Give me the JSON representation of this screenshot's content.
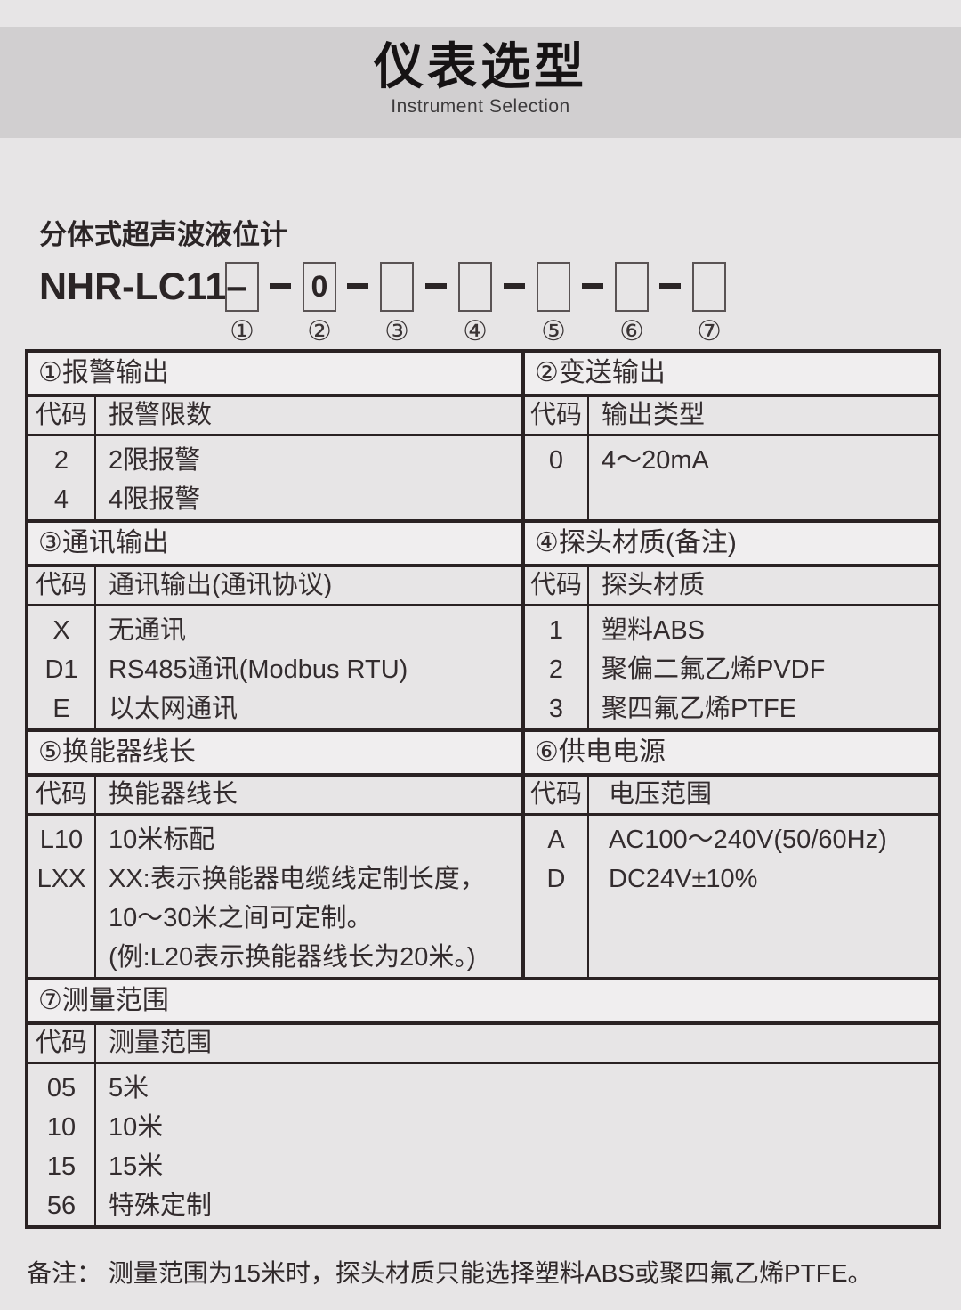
{
  "header": {
    "title": "仪表选型",
    "subtitle": "Instrument Selection"
  },
  "product": {
    "name": "分体式超声波液位计",
    "model_prefix": "NHR-LC11–",
    "boxes": [
      "",
      "0",
      "",
      "",
      "",
      "",
      ""
    ],
    "position_labels": [
      "①",
      "②",
      "③",
      "④",
      "⑤",
      "⑥",
      "⑦"
    ]
  },
  "sections": [
    {
      "title": "①报警输出",
      "col_headers": [
        "代码",
        "报警限数"
      ],
      "rows": [
        [
          "2",
          "2限报警"
        ],
        [
          "4",
          "4限报警"
        ]
      ]
    },
    {
      "title": "②变送输出",
      "col_headers": [
        "代码",
        "输出类型"
      ],
      "rows": [
        [
          "0",
          "4～20mA"
        ]
      ]
    },
    {
      "title": "③通讯输出",
      "col_headers": [
        "代码",
        "通讯输出(通讯协议)"
      ],
      "rows": [
        [
          "X",
          "无通讯"
        ],
        [
          "D1",
          "RS485通讯(Modbus RTU)"
        ],
        [
          "E",
          "以太网通讯"
        ]
      ]
    },
    {
      "title": "④探头材质(备注)",
      "col_headers": [
        "代码",
        "探头材质"
      ],
      "rows": [
        [
          "1",
          "塑料ABS"
        ],
        [
          "2",
          "聚偏二氟乙烯PVDF"
        ],
        [
          "3",
          "聚四氟乙烯PTFE"
        ]
      ]
    },
    {
      "title": "⑤换能器线长",
      "col_headers": [
        "代码",
        "换能器线长"
      ],
      "rows": [
        [
          "L10",
          "10米标配"
        ],
        [
          "LXX",
          "XX:表示换能器电缆线定制长度，"
        ],
        [
          "",
          "10～30米之间可定制。"
        ],
        [
          "",
          "(例:L20表示换能器线长为20米。)"
        ]
      ]
    },
    {
      "title": "⑥供电电源",
      "col_headers": [
        "代码",
        "电压范围"
      ],
      "rows": [
        [
          "A",
          "AC100～240V(50/60Hz)"
        ],
        [
          "D",
          "DC24V±10%"
        ]
      ]
    },
    {
      "title": "⑦测量范围",
      "col_headers": [
        "代码",
        "测量范围"
      ],
      "rows": [
        [
          "05",
          "5米"
        ],
        [
          "10",
          "10米"
        ],
        [
          "15",
          "15米"
        ],
        [
          "56",
          "特殊定制"
        ]
      ]
    }
  ],
  "note": "备注： 测量范围为15米时，探头材质只能选择塑料ABS或聚四氟乙烯PTFE。",
  "colors": {
    "page_bg": "#e7e5e6",
    "title_band_bg": "#d1cfd0",
    "section_header_bg": "#f0eeef",
    "border": "#2a2223",
    "text": "#332c2e"
  }
}
